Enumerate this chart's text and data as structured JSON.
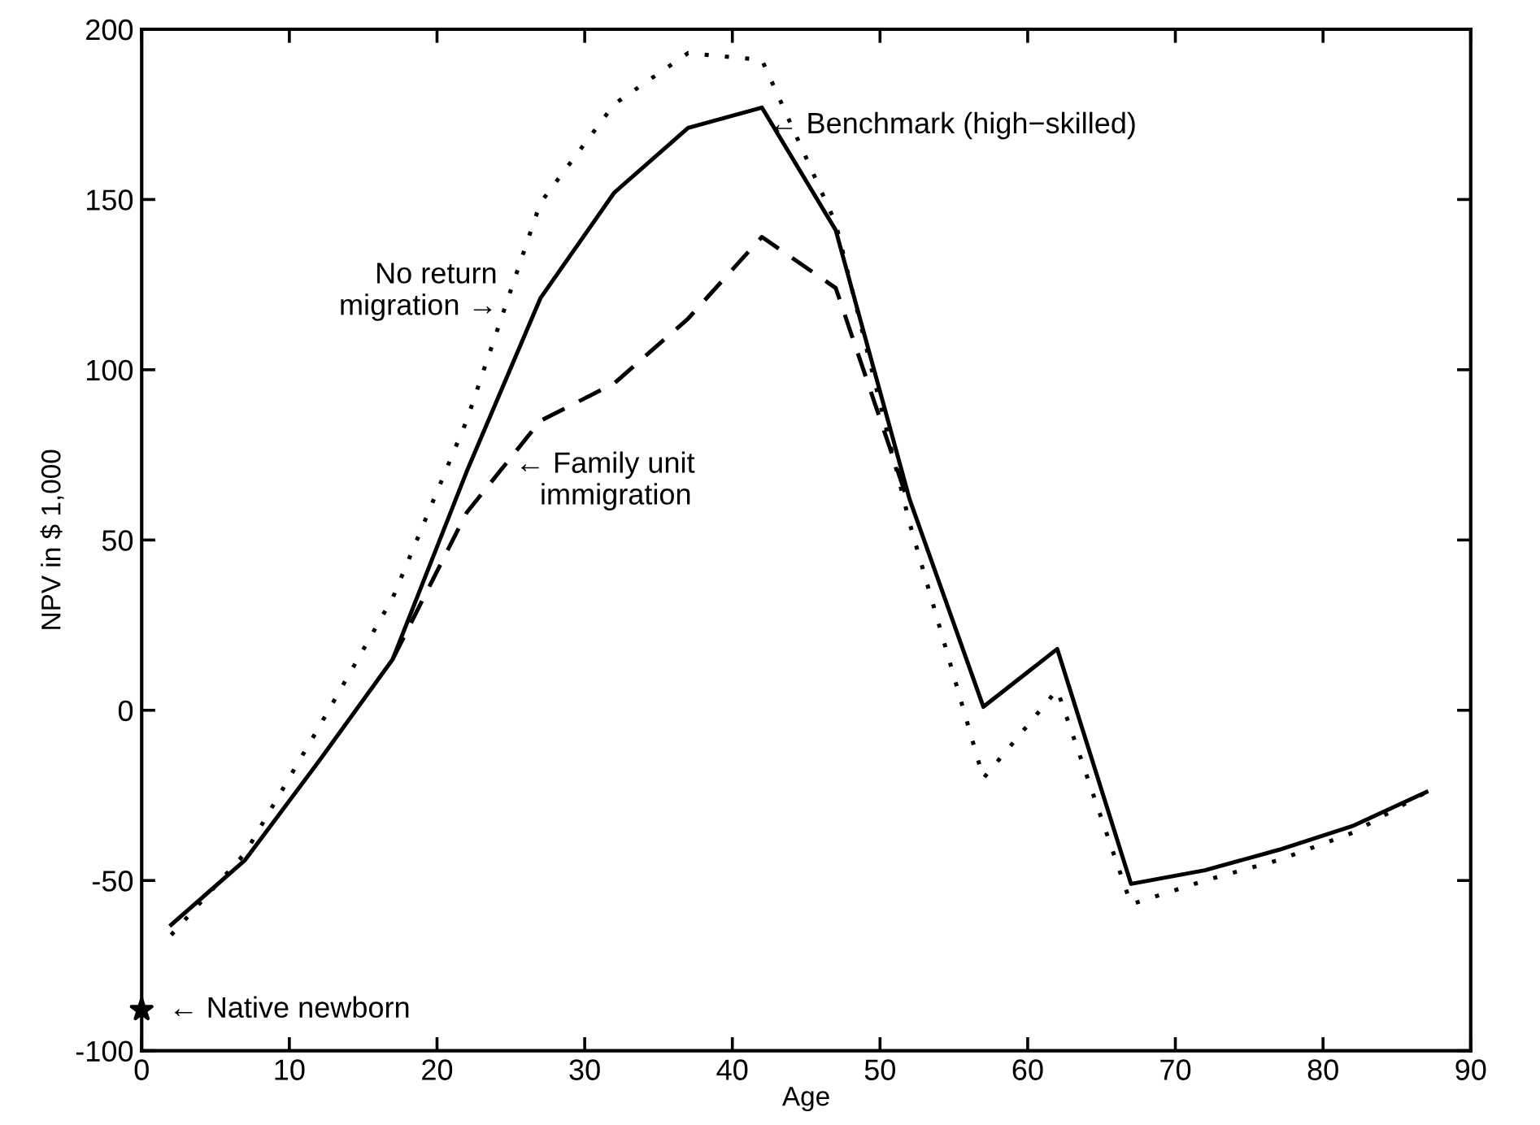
{
  "chart_data": {
    "type": "line",
    "xlabel": "Age",
    "ylabel": "NPV in $ 1,000",
    "xlim": [
      0,
      90
    ],
    "xticks": [
      0,
      10,
      20,
      30,
      40,
      50,
      60,
      70,
      80,
      90
    ],
    "ylim": [
      -100,
      200
    ],
    "yticks": [
      -100,
      -50,
      0,
      50,
      100,
      150,
      200
    ],
    "grid": false,
    "legend": false,
    "marker": "none",
    "series": [
      {
        "color": "#000000",
        "line_style": "solid",
        "x": [
          2,
          7,
          12,
          17,
          22,
          27,
          32,
          37,
          42,
          47,
          52,
          57,
          62,
          67,
          72,
          77,
          82,
          87
        ],
        "values": [
          -63,
          -44,
          -15,
          15,
          70,
          121,
          152,
          171,
          177,
          141,
          62,
          1,
          18,
          -51,
          -47,
          -41,
          -34,
          -24
        ]
      },
      {
        "color": "#000000",
        "line_style": "dotted",
        "x": [
          2,
          7,
          12,
          17,
          22,
          27,
          32,
          37,
          42,
          47,
          52,
          57,
          62,
          67,
          72,
          77,
          82,
          87
        ],
        "values": [
          -66,
          -42,
          -5,
          33,
          85,
          149,
          178,
          193,
          191,
          143,
          55,
          -20,
          6,
          -57,
          -50,
          -44,
          -36,
          -24
        ]
      },
      {
        "color": "#000000",
        "line_style": "dashed",
        "x": [
          17,
          22,
          27,
          32,
          37,
          42,
          47,
          52
        ],
        "values": [
          15,
          58,
          85,
          96,
          115,
          139,
          124,
          60
        ]
      },
      {
        "type": "scatter",
        "color": "#000000",
        "marker": "star",
        "x": [
          0
        ],
        "values": [
          -88
        ]
      }
    ],
    "annotations": [
      {
        "text": "← Benchmark (high−skilled)",
        "x": 42,
        "y": 177
      },
      {
        "text": "No return\nmigration →",
        "x": 25,
        "y": 123
      },
      {
        "text": "← Family unit\n   immigration",
        "x": 25,
        "y": 76
      },
      {
        "text": "← Native newborn",
        "x": 0,
        "y": -88
      }
    ]
  }
}
